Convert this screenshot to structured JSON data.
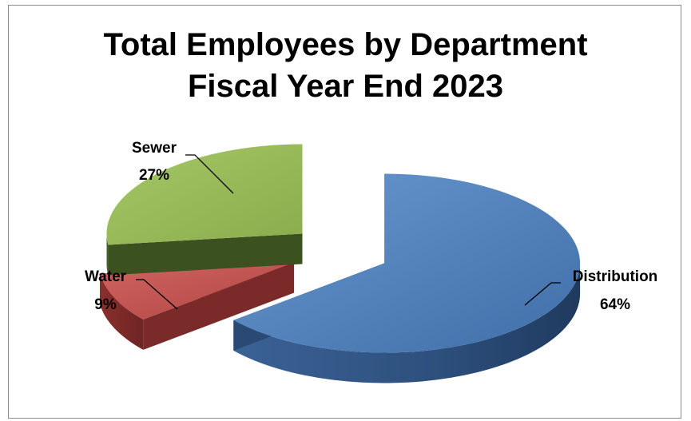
{
  "chart_data": {
    "type": "pie",
    "title": "Total Employees by Department",
    "subtitle": "Fiscal Year End 2023",
    "slices": [
      {
        "name": "Distribution",
        "value": 64,
        "label": "64%",
        "color": "#4f81bd"
      },
      {
        "name": "Water",
        "value": 9,
        "label": "9%",
        "color": "#c0504d"
      },
      {
        "name": "Sewer",
        "value": 27,
        "label": "27%",
        "color": "#9bbb59"
      }
    ],
    "exploded": true,
    "three_d": true,
    "legend": "none"
  }
}
